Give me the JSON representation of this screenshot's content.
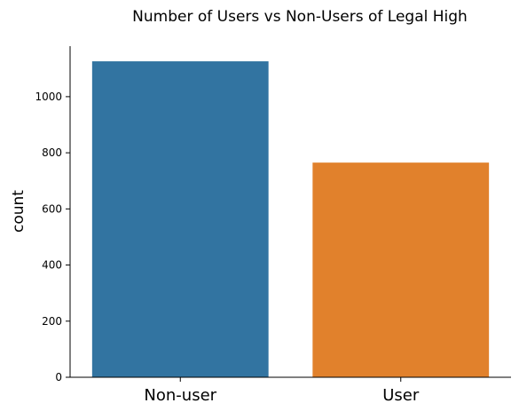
{
  "chart_data": {
    "type": "bar",
    "title": "Number of Users vs Non-Users of Legal High",
    "xlabel": "",
    "ylabel": "count",
    "categories": [
      "Non-user",
      "User"
    ],
    "values": [
      1126,
      765
    ],
    "colors": [
      "#3274a1",
      "#e1812c"
    ],
    "ylim": [
      0,
      1180
    ],
    "yticks": [
      0,
      200,
      400,
      600,
      800,
      1000
    ],
    "grid": false,
    "spines": [
      "left",
      "bottom"
    ]
  }
}
